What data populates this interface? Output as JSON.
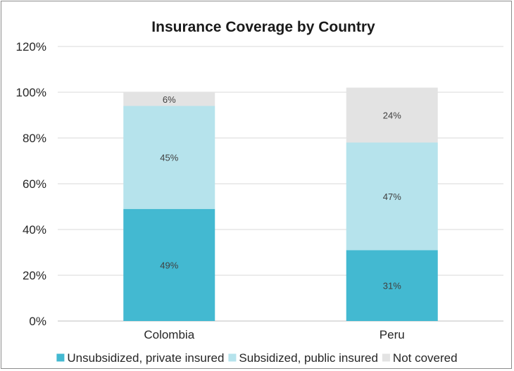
{
  "chart_data": {
    "type": "bar",
    "stacked": true,
    "title": "Insurance Coverage by Country",
    "xlabel": "",
    "ylabel": "",
    "categories": [
      "Colombia",
      "Peru"
    ],
    "ylim": [
      0,
      120
    ],
    "yticks": [
      0,
      20,
      40,
      60,
      80,
      100,
      120
    ],
    "ytick_labels": [
      "0%",
      "20%",
      "40%",
      "60%",
      "80%",
      "100%",
      "120%"
    ],
    "grid": true,
    "legend_position": "bottom",
    "series": [
      {
        "name": "Unsubsidized, private insured",
        "values": [
          49,
          31
        ],
        "labels": [
          "49%",
          "31%"
        ],
        "color": "#43b9d1"
      },
      {
        "name": "Subsidized, public insured",
        "values": [
          45,
          47
        ],
        "labels": [
          "45%",
          "47%"
        ],
        "color": "#b6e3ec"
      },
      {
        "name": "Not covered",
        "values": [
          6,
          24
        ],
        "labels": [
          "6%",
          "24%"
        ],
        "color": "#e3e3e3"
      }
    ]
  }
}
